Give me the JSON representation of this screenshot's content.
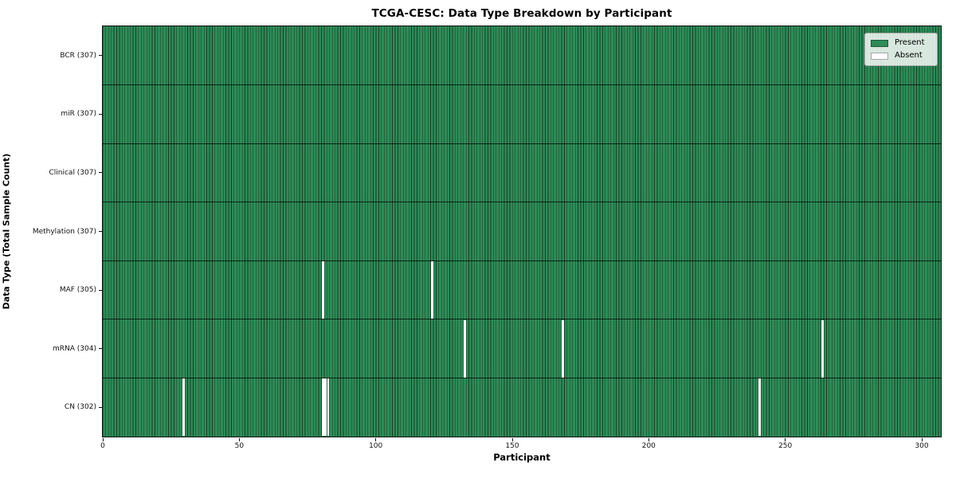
{
  "chart_data": {
    "type": "heatmap",
    "title": "TCGA-CESC: Data Type Breakdown by Participant",
    "xlabel": "Participant",
    "ylabel": "Data Type (Total Sample Count)",
    "x_ticks": [
      0,
      50,
      100,
      150,
      200,
      250,
      300
    ],
    "n_participants": 307,
    "grid": "cell-edges-on",
    "legend": {
      "position": "upper right",
      "entries": [
        {
          "label": "Present",
          "color": "#2e8b57"
        },
        {
          "label": "Absent",
          "color": "#ffffff"
        }
      ]
    },
    "rows": [
      {
        "label": "BCR (307)",
        "data_type": "BCR",
        "total": 307,
        "absent_participants": []
      },
      {
        "label": "miR (307)",
        "data_type": "miR",
        "total": 307,
        "absent_participants": []
      },
      {
        "label": "Clinical (307)",
        "data_type": "Clinical",
        "total": 307,
        "absent_participants": []
      },
      {
        "label": "Methylation (307)",
        "data_type": "Methylation",
        "total": 307,
        "absent_participants": []
      },
      {
        "label": "MAF (305)",
        "data_type": "MAF",
        "total": 305,
        "absent_participants": [
          80,
          120
        ]
      },
      {
        "label": "mRNA (304)",
        "data_type": "mRNA",
        "total": 304,
        "absent_participants": [
          132,
          168,
          263
        ]
      },
      {
        "label": "CN (302)",
        "data_type": "CN",
        "total": 302,
        "absent_participants": [
          29,
          80,
          81,
          82,
          240
        ]
      }
    ],
    "colors": {
      "present": "#2e8b57",
      "absent": "#ffffff",
      "cell_edge": "rgba(0,0,0,0.55)",
      "row_divider": "rgba(0,0,0,0.72)",
      "spine": "#111111"
    }
  }
}
